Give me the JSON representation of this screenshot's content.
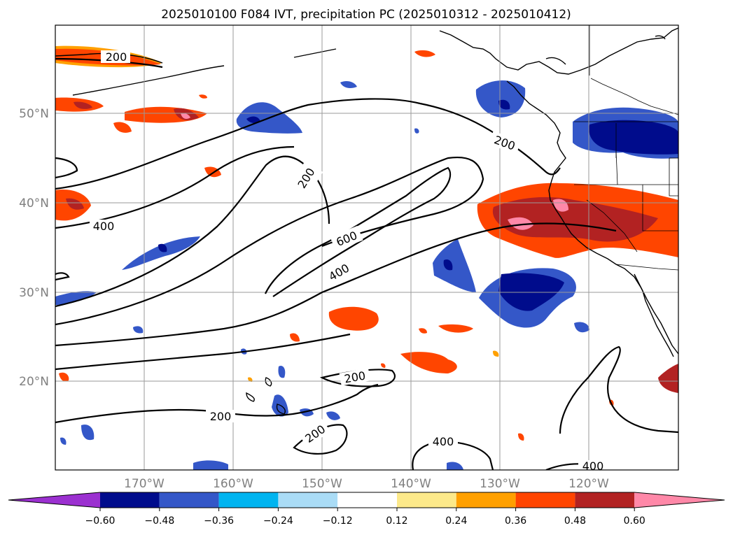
{
  "title": "2025010100 F084 IVT, precipitation PC (2025010312 - 2025010412)",
  "lat_labels": [
    "50°N",
    "40°N",
    "30°N",
    "20°N"
  ],
  "lon_labels": [
    "170°W",
    "160°W",
    "150°W",
    "140°W",
    "130°W",
    "120°W"
  ],
  "contour_labels": [
    "200",
    "200",
    "200",
    "200",
    "200",
    "200",
    "200",
    "400",
    "400",
    "400",
    "400",
    "600"
  ],
  "colorbar": {
    "ticks": [
      "−0.60",
      "−0.48",
      "−0.36",
      "−0.24",
      "−0.12",
      "0.12",
      "0.24",
      "0.36",
      "0.48",
      "0.60"
    ],
    "colors": [
      "#9b30d0",
      "#000c8c",
      "#3457c8",
      "#00b4f0",
      "#aadcf6",
      "#ffffff",
      "#fce98a",
      "#ffa000",
      "#ff4500",
      "#b22222",
      "#ff88a8"
    ]
  },
  "chart_data": {
    "type": "map",
    "title": "2025010100 F084 IVT, precipitation PC (2025010312 - 2025010412)",
    "projection": "lat-lon, Pacific Ocean",
    "lon_range": [
      "180°W",
      "110°W"
    ],
    "lat_range": [
      "10°N",
      "60°N"
    ],
    "ivt_contour_levels": [
      200,
      400,
      600
    ],
    "precip_pc_levels": [
      -0.6,
      -0.48,
      -0.36,
      -0.24,
      -0.12,
      0.12,
      0.24,
      0.36,
      0.48,
      0.6
    ],
    "grid": true
  }
}
